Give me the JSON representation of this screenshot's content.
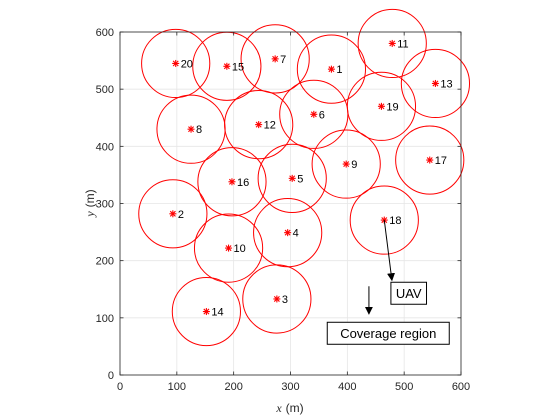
{
  "chart_data": {
    "type": "scatter",
    "title": "",
    "xlabel": {
      "var": "x",
      "unit": "(m)"
    },
    "ylabel": {
      "var": "y",
      "unit": "(m)"
    },
    "xlim": [
      0,
      600
    ],
    "ylim": [
      0,
      600
    ],
    "xticks": [
      "0",
      "100",
      "200",
      "300",
      "400",
      "500",
      "600"
    ],
    "yticks": [
      "0",
      "100",
      "200",
      "300",
      "400",
      "500",
      "600"
    ],
    "grid": true,
    "coverage_radius": 60,
    "colors": {
      "marker": "#ff0000",
      "circle": "#ff0000",
      "grid": "#e6e6e6",
      "axis": "#262626"
    },
    "points": [
      {
        "id": "1",
        "x": 372,
        "y": 535
      },
      {
        "id": "2",
        "x": 93,
        "y": 282
      },
      {
        "id": "3",
        "x": 276,
        "y": 133
      },
      {
        "id": "4",
        "x": 295,
        "y": 249
      },
      {
        "id": "5",
        "x": 303,
        "y": 344
      },
      {
        "id": "6",
        "x": 341,
        "y": 456
      },
      {
        "id": "7",
        "x": 273,
        "y": 553
      },
      {
        "id": "8",
        "x": 125,
        "y": 430
      },
      {
        "id": "9",
        "x": 398,
        "y": 369
      },
      {
        "id": "10",
        "x": 191,
        "y": 222
      },
      {
        "id": "11",
        "x": 479,
        "y": 580
      },
      {
        "id": "12",
        "x": 244,
        "y": 438
      },
      {
        "id": "13",
        "x": 555,
        "y": 510
      },
      {
        "id": "14",
        "x": 152,
        "y": 111
      },
      {
        "id": "15",
        "x": 188,
        "y": 540
      },
      {
        "id": "16",
        "x": 197,
        "y": 338
      },
      {
        "id": "17",
        "x": 545,
        "y": 376
      },
      {
        "id": "18",
        "x": 465,
        "y": 271
      },
      {
        "id": "19",
        "x": 460,
        "y": 470
      },
      {
        "id": "20",
        "x": 98,
        "y": 545
      }
    ],
    "annotations": [
      {
        "text": "UAV",
        "target_id": "18",
        "box_x": 508,
        "box_y": 143
      },
      {
        "text": "Coverage region",
        "box_x": 472,
        "box_y": 73,
        "arrow_to_x": 438,
        "arrow_to_y": 107
      }
    ]
  }
}
